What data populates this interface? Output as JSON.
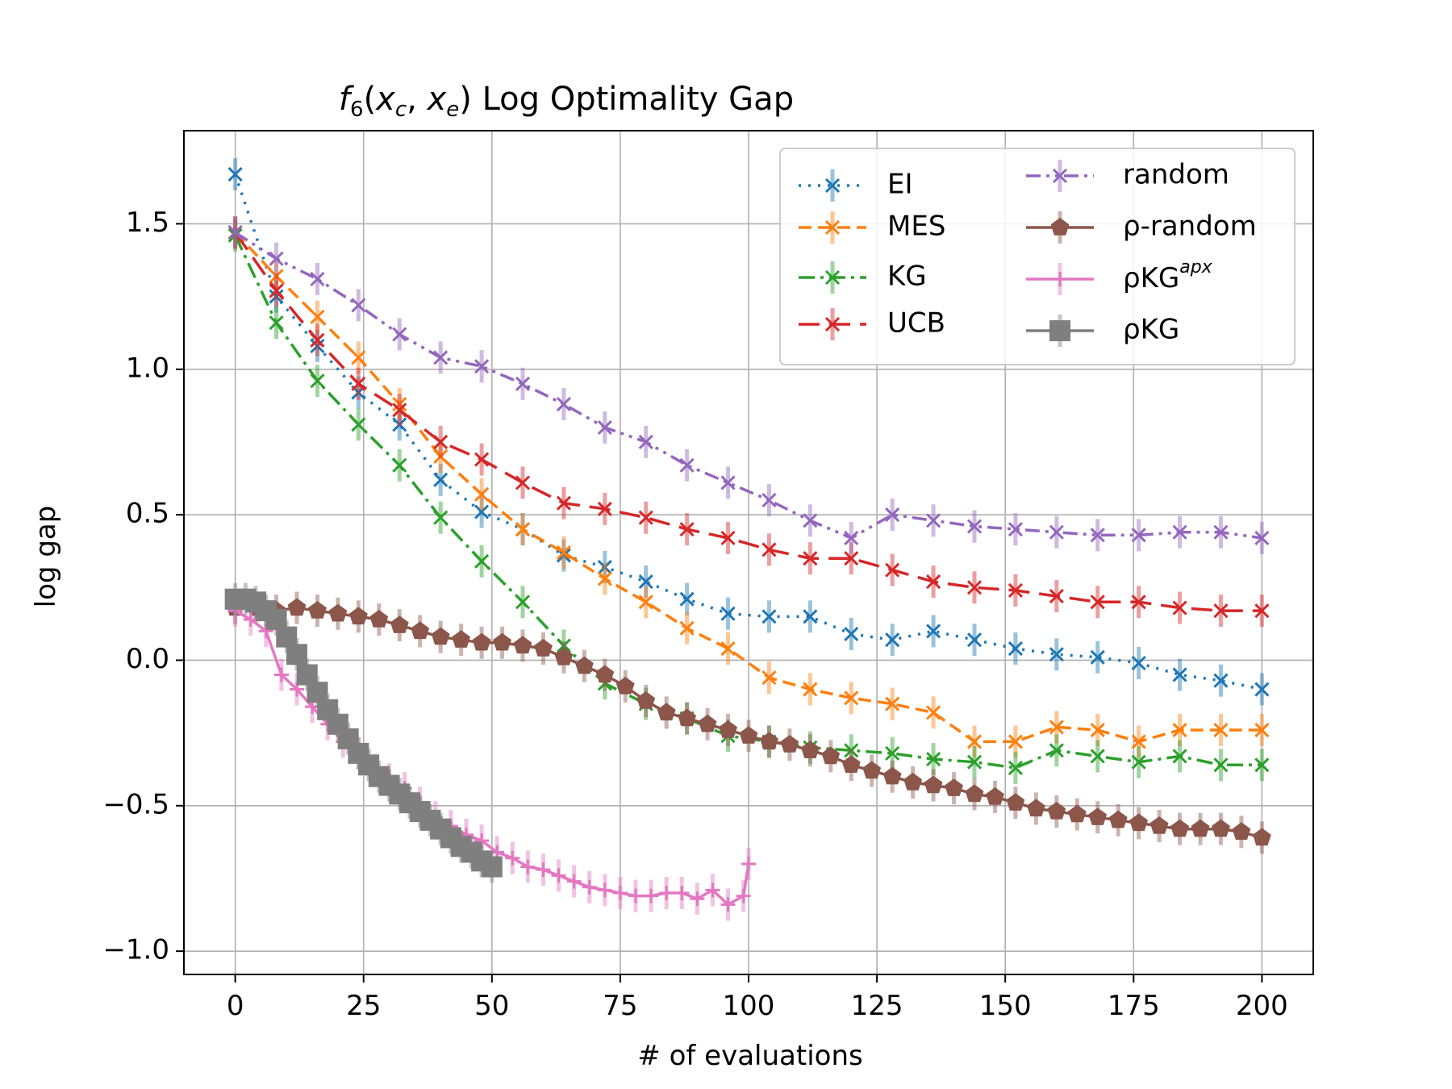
{
  "chart_data": {
    "type": "line",
    "title": "f6(xc, xe) Log Optimality Gap",
    "title_parts": {
      "f": "f",
      "sub6": "6",
      "x1": "x",
      "c": "c",
      "x2": "x",
      "e": "e",
      "rest": " Log Optimality Gap"
    },
    "xlabel": "# of evaluations",
    "ylabel": "log gap",
    "xlim": [
      -10,
      210
    ],
    "ylim": [
      -1.08,
      1.82
    ],
    "xticks": [
      0,
      25,
      50,
      75,
      100,
      125,
      150,
      175,
      200
    ],
    "yticks": [
      -1.0,
      -0.5,
      0.0,
      0.5,
      1.0,
      1.5
    ],
    "ytick_labels": [
      "−1.0",
      "−0.5",
      "0.0",
      "0.5",
      "1.0",
      "1.5"
    ],
    "grid": true,
    "legend_position": "top-right",
    "series": [
      {
        "name": "EI",
        "color": "#1f77b4",
        "marker": "x",
        "linestyle": "dotted",
        "x": [
          0,
          8,
          16,
          24,
          32,
          40,
          48,
          56,
          64,
          72,
          80,
          88,
          96,
          104,
          112,
          120,
          128,
          136,
          144,
          152,
          160,
          168,
          176,
          184,
          192,
          200
        ],
        "y": [
          1.67,
          1.25,
          1.08,
          0.92,
          0.81,
          0.62,
          0.51,
          0.45,
          0.36,
          0.32,
          0.27,
          0.21,
          0.16,
          0.15,
          0.15,
          0.09,
          0.07,
          0.1,
          0.07,
          0.04,
          0.02,
          0.01,
          -0.01,
          -0.05,
          -0.07,
          -0.1
        ]
      },
      {
        "name": "MES",
        "color": "#ff7f0e",
        "marker": "x",
        "linestyle": "dashed",
        "x": [
          0,
          8,
          16,
          24,
          32,
          40,
          48,
          56,
          64,
          72,
          80,
          88,
          96,
          104,
          112,
          120,
          128,
          136,
          144,
          152,
          160,
          168,
          176,
          184,
          192,
          200
        ],
        "y": [
          1.47,
          1.32,
          1.18,
          1.04,
          0.88,
          0.7,
          0.57,
          0.45,
          0.37,
          0.28,
          0.2,
          0.11,
          0.04,
          -0.06,
          -0.1,
          -0.13,
          -0.15,
          -0.18,
          -0.28,
          -0.28,
          -0.23,
          -0.24,
          -0.28,
          -0.24,
          -0.24,
          -0.24
        ]
      },
      {
        "name": "KG",
        "color": "#2ca02c",
        "marker": "x",
        "linestyle": "dashdot",
        "x": [
          0,
          8,
          16,
          24,
          32,
          40,
          48,
          56,
          64,
          72,
          80,
          88,
          96,
          104,
          112,
          120,
          128,
          136,
          144,
          152,
          160,
          168,
          176,
          184,
          192,
          200
        ],
        "y": [
          1.46,
          1.16,
          0.96,
          0.81,
          0.67,
          0.49,
          0.34,
          0.2,
          0.05,
          -0.08,
          -0.15,
          -0.2,
          -0.26,
          -0.28,
          -0.3,
          -0.31,
          -0.32,
          -0.34,
          -0.35,
          -0.37,
          -0.31,
          -0.33,
          -0.35,
          -0.33,
          -0.36,
          -0.36
        ]
      },
      {
        "name": "UCB",
        "color": "#d62728",
        "marker": "x",
        "linestyle": "longdash",
        "x": [
          0,
          8,
          16,
          24,
          32,
          40,
          48,
          56,
          64,
          72,
          80,
          88,
          96,
          104,
          112,
          120,
          128,
          136,
          144,
          152,
          160,
          168,
          176,
          184,
          192,
          200
        ],
        "y": [
          1.47,
          1.27,
          1.1,
          0.95,
          0.86,
          0.75,
          0.69,
          0.61,
          0.54,
          0.52,
          0.49,
          0.45,
          0.42,
          0.38,
          0.35,
          0.35,
          0.31,
          0.27,
          0.25,
          0.24,
          0.22,
          0.2,
          0.2,
          0.18,
          0.17,
          0.17
        ]
      },
      {
        "name": "random",
        "color": "#9467bd",
        "marker": "x",
        "linestyle": "dashdotdot",
        "x": [
          0,
          8,
          16,
          24,
          32,
          40,
          48,
          56,
          64,
          72,
          80,
          88,
          96,
          104,
          112,
          120,
          128,
          136,
          144,
          152,
          160,
          168,
          176,
          184,
          192,
          200
        ],
        "y": [
          1.47,
          1.38,
          1.31,
          1.22,
          1.12,
          1.04,
          1.01,
          0.95,
          0.88,
          0.8,
          0.75,
          0.67,
          0.61,
          0.55,
          0.48,
          0.42,
          0.5,
          0.48,
          0.46,
          0.45,
          0.44,
          0.43,
          0.43,
          0.44,
          0.44,
          0.42
        ]
      },
      {
        "name": "ρ-random",
        "color": "#8c564b",
        "marker": "pentagon",
        "linestyle": "solid",
        "x": [
          0,
          4,
          8,
          12,
          16,
          20,
          24,
          28,
          32,
          36,
          40,
          44,
          48,
          52,
          56,
          60,
          64,
          68,
          72,
          76,
          80,
          84,
          88,
          92,
          96,
          100,
          104,
          108,
          112,
          116,
          120,
          124,
          128,
          132,
          136,
          140,
          144,
          148,
          152,
          156,
          160,
          164,
          168,
          172,
          176,
          180,
          184,
          188,
          192,
          196,
          200
        ],
        "y": [
          0.18,
          0.18,
          0.17,
          0.18,
          0.17,
          0.16,
          0.15,
          0.14,
          0.12,
          0.1,
          0.08,
          0.07,
          0.06,
          0.06,
          0.05,
          0.04,
          0.01,
          -0.02,
          -0.05,
          -0.09,
          -0.14,
          -0.18,
          -0.2,
          -0.22,
          -0.24,
          -0.26,
          -0.28,
          -0.29,
          -0.31,
          -0.33,
          -0.36,
          -0.38,
          -0.4,
          -0.42,
          -0.43,
          -0.44,
          -0.46,
          -0.47,
          -0.49,
          -0.51,
          -0.52,
          -0.53,
          -0.54,
          -0.55,
          -0.56,
          -0.57,
          -0.58,
          -0.58,
          -0.58,
          -0.59,
          -0.61
        ]
      },
      {
        "name": "ρKGapx",
        "name_base": "ρKG",
        "name_sup": "apx",
        "color": "#e377c2",
        "marker": "plus",
        "linestyle": "solid",
        "x": [
          0,
          3,
          6,
          9,
          12,
          15,
          18,
          21,
          24,
          27,
          30,
          33,
          36,
          39,
          42,
          45,
          48,
          51,
          54,
          57,
          60,
          63,
          66,
          69,
          72,
          75,
          78,
          81,
          84,
          87,
          90,
          93,
          96,
          99,
          100
        ],
        "y": [
          0.17,
          0.14,
          0.1,
          -0.05,
          -0.1,
          -0.16,
          -0.22,
          -0.28,
          -0.32,
          -0.38,
          -0.41,
          -0.44,
          -0.49,
          -0.54,
          -0.57,
          -0.6,
          -0.62,
          -0.66,
          -0.68,
          -0.71,
          -0.72,
          -0.74,
          -0.76,
          -0.78,
          -0.79,
          -0.8,
          -0.81,
          -0.81,
          -0.8,
          -0.8,
          -0.82,
          -0.79,
          -0.84,
          -0.81,
          -0.7
        ]
      },
      {
        "name": "ρKG",
        "color": "#7f7f7f",
        "marker": "square",
        "linestyle": "solid",
        "x": [
          0,
          2,
          4,
          6,
          8,
          10,
          12,
          14,
          16,
          18,
          20,
          22,
          24,
          26,
          28,
          30,
          32,
          34,
          36,
          38,
          40,
          42,
          44,
          46,
          48,
          50
        ],
        "y": [
          0.21,
          0.21,
          0.2,
          0.17,
          0.14,
          0.08,
          0.02,
          -0.05,
          -0.11,
          -0.17,
          -0.22,
          -0.27,
          -0.32,
          -0.36,
          -0.4,
          -0.43,
          -0.46,
          -0.49,
          -0.52,
          -0.55,
          -0.58,
          -0.61,
          -0.64,
          -0.66,
          -0.69,
          -0.71
        ]
      }
    ]
  }
}
